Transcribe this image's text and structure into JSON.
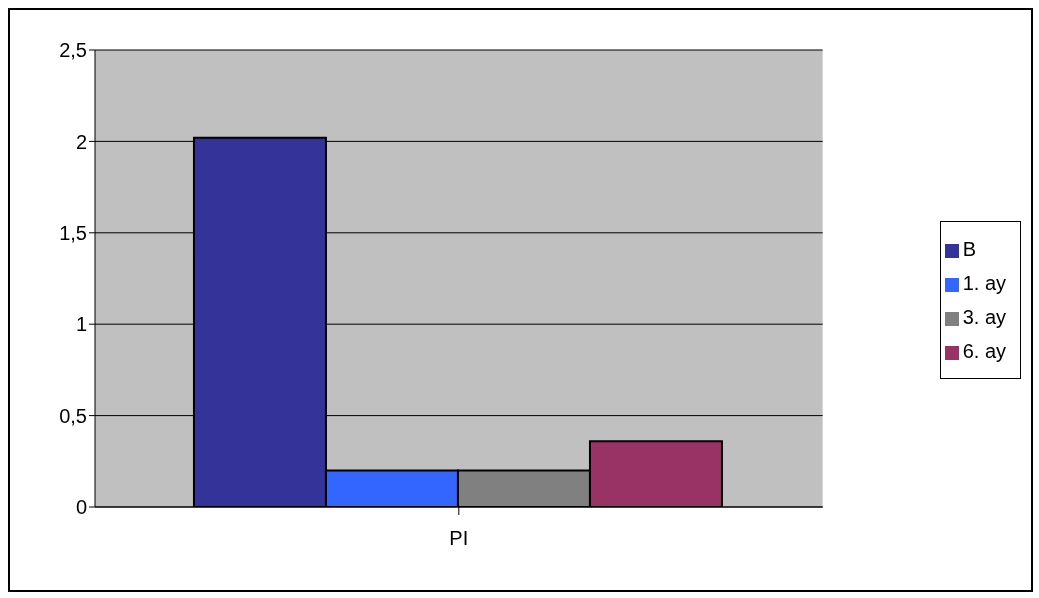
{
  "chart_data": {
    "type": "bar",
    "categories": [
      "PI"
    ],
    "series": [
      {
        "name": "B",
        "color": "#333399",
        "values": [
          2.02
        ]
      },
      {
        "name": "1. ay",
        "color": "#3366ff",
        "values": [
          0.2
        ]
      },
      {
        "name": "3. ay",
        "color": "#808080",
        "values": [
          0.2
        ]
      },
      {
        "name": "6. ay",
        "color": "#993366",
        "values": [
          0.36
        ]
      }
    ],
    "ylim": [
      0,
      2.5
    ],
    "yticks": [
      0,
      {
        "value": 0.5,
        "label": "0,5"
      },
      1,
      {
        "value": 1.5,
        "label": "1,5"
      },
      2,
      {
        "value": 2.5,
        "label": "2,5"
      }
    ],
    "grid": "y",
    "legend": "right"
  }
}
